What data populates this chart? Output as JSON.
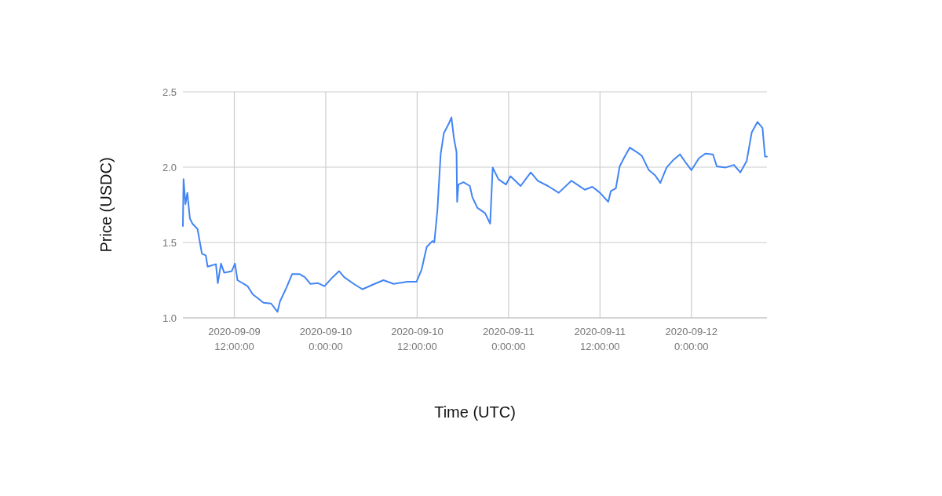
{
  "chart_data": {
    "type": "line",
    "xlabel": "Time (UTC)",
    "ylabel": "Price (USDC)",
    "grid": true,
    "marker": "none",
    "line_style": "solid",
    "xlim": [
      "2020-09-09T05:15",
      "2020-09-12T09:55"
    ],
    "ylim": [
      1.0,
      2.5
    ],
    "yticks": [
      {
        "value": 1,
        "label": "1.0"
      },
      {
        "value": 1.5,
        "label": "1.5"
      },
      {
        "value": 2,
        "label": "2.0"
      },
      {
        "value": 2.5,
        "label": "2.5"
      }
    ],
    "xticks": [
      {
        "value": "2020-09-09T12:00",
        "label": "2020-09-09 12:00:00"
      },
      {
        "value": "2020-09-10T00:00",
        "label": "2020-09-10 0:00:00"
      },
      {
        "value": "2020-09-10T12:00",
        "label": "2020-09-10 12:00:00"
      },
      {
        "value": "2020-09-11T00:00",
        "label": "2020-09-11 0:00:00"
      },
      {
        "value": "2020-09-11T12:00",
        "label": "2020-09-11 12:00:00"
      },
      {
        "value": "2020-09-12T00:00",
        "label": "2020-09-12 0:00:00"
      }
    ],
    "x": [
      "2020-09-09T05:15",
      "2020-09-09T05:20",
      "2020-09-09T05:35",
      "2020-09-09T05:50",
      "2020-09-09T06:10",
      "2020-09-09T06:30",
      "2020-09-09T07:10",
      "2020-09-09T07:45",
      "2020-09-09T08:15",
      "2020-09-09T08:30",
      "2020-09-09T09:35",
      "2020-09-09T09:50",
      "2020-09-09T10:15",
      "2020-09-09T10:40",
      "2020-09-09T11:40",
      "2020-09-09T12:05",
      "2020-09-09T12:25",
      "2020-09-09T13:45",
      "2020-09-09T14:25",
      "2020-09-09T15:05",
      "2020-09-09T15:50",
      "2020-09-09T16:50",
      "2020-09-09T17:40",
      "2020-09-09T18:00",
      "2020-09-09T18:45",
      "2020-09-09T19:35",
      "2020-09-09T20:35",
      "2020-09-09T21:15",
      "2020-09-09T22:00",
      "2020-09-09T23:00",
      "2020-09-09T23:50",
      "2020-09-10T00:55",
      "2020-09-10T01:45",
      "2020-09-10T02:25",
      "2020-09-10T03:50",
      "2020-09-10T04:50",
      "2020-09-10T06:10",
      "2020-09-10T07:35",
      "2020-09-10T08:55",
      "2020-09-10T10:40",
      "2020-09-10T11:55",
      "2020-09-10T12:35",
      "2020-09-10T13:15",
      "2020-09-10T14:00",
      "2020-09-10T14:15",
      "2020-09-10T14:40",
      "2020-09-10T15:05",
      "2020-09-10T15:30",
      "2020-09-10T16:10",
      "2020-09-10T16:30",
      "2020-09-10T16:50",
      "2020-09-10T17:10",
      "2020-09-10T17:15",
      "2020-09-10T17:25",
      "2020-09-10T18:05",
      "2020-09-10T18:55",
      "2020-09-10T19:15",
      "2020-09-10T19:55",
      "2020-09-10T20:55",
      "2020-09-10T21:35",
      "2020-09-10T21:55",
      "2020-09-10T22:40",
      "2020-09-10T23:40",
      "2020-09-11T00:15",
      "2020-09-11T01:35",
      "2020-09-11T02:55",
      "2020-09-11T03:50",
      "2020-09-11T05:10",
      "2020-09-11T06:35",
      "2020-09-11T08:15",
      "2020-09-11T09:00",
      "2020-09-11T10:00",
      "2020-09-11T11:00",
      "2020-09-11T12:00",
      "2020-09-11T13:05",
      "2020-09-11T13:25",
      "2020-09-11T14:05",
      "2020-09-11T14:35",
      "2020-09-11T15:15",
      "2020-09-11T15:55",
      "2020-09-11T16:50",
      "2020-09-11T17:30",
      "2020-09-11T18:25",
      "2020-09-11T19:15",
      "2020-09-11T19:55",
      "2020-09-11T20:45",
      "2020-09-11T21:40",
      "2020-09-11T22:30",
      "2020-09-11T23:20",
      "2020-09-12T00:00",
      "2020-09-12T01:00",
      "2020-09-12T01:50",
      "2020-09-12T02:50",
      "2020-09-12T03:20",
      "2020-09-12T04:30",
      "2020-09-12T05:35",
      "2020-09-12T06:25",
      "2020-09-12T07:15",
      "2020-09-12T07:55",
      "2020-09-12T08:40",
      "2020-09-12T09:20",
      "2020-09-12T09:40",
      "2020-09-12T09:55"
    ],
    "series": [
      {
        "color": "#4285f4",
        "values": [
          1.61,
          1.92,
          1.755,
          1.83,
          1.66,
          1.625,
          1.59,
          1.425,
          1.415,
          1.34,
          1.356,
          1.23,
          1.36,
          1.3,
          1.31,
          1.36,
          1.25,
          1.21,
          1.156,
          1.13,
          1.1,
          1.095,
          1.04,
          1.11,
          1.19,
          1.29,
          1.29,
          1.27,
          1.225,
          1.23,
          1.21,
          1.27,
          1.31,
          1.27,
          1.22,
          1.19,
          1.22,
          1.25,
          1.225,
          1.24,
          1.24,
          1.32,
          1.47,
          1.51,
          1.5,
          1.72,
          2.085,
          2.225,
          2.29,
          2.33,
          2.19,
          2.1,
          1.77,
          1.885,
          1.9,
          1.875,
          1.8,
          1.73,
          1.695,
          1.625,
          1.998,
          1.92,
          1.885,
          1.94,
          1.875,
          1.965,
          1.91,
          1.875,
          1.83,
          1.91,
          1.885,
          1.85,
          1.87,
          1.83,
          1.77,
          1.84,
          1.86,
          2.005,
          2.07,
          2.13,
          2.1,
          2.075,
          1.98,
          1.945,
          1.895,
          1.998,
          2.05,
          2.085,
          2.025,
          1.98,
          2.06,
          2.09,
          2.085,
          2.005,
          1.998,
          2.015,
          1.965,
          2.04,
          2.23,
          2.3,
          2.26,
          2.07,
          2.07
        ]
      }
    ]
  }
}
